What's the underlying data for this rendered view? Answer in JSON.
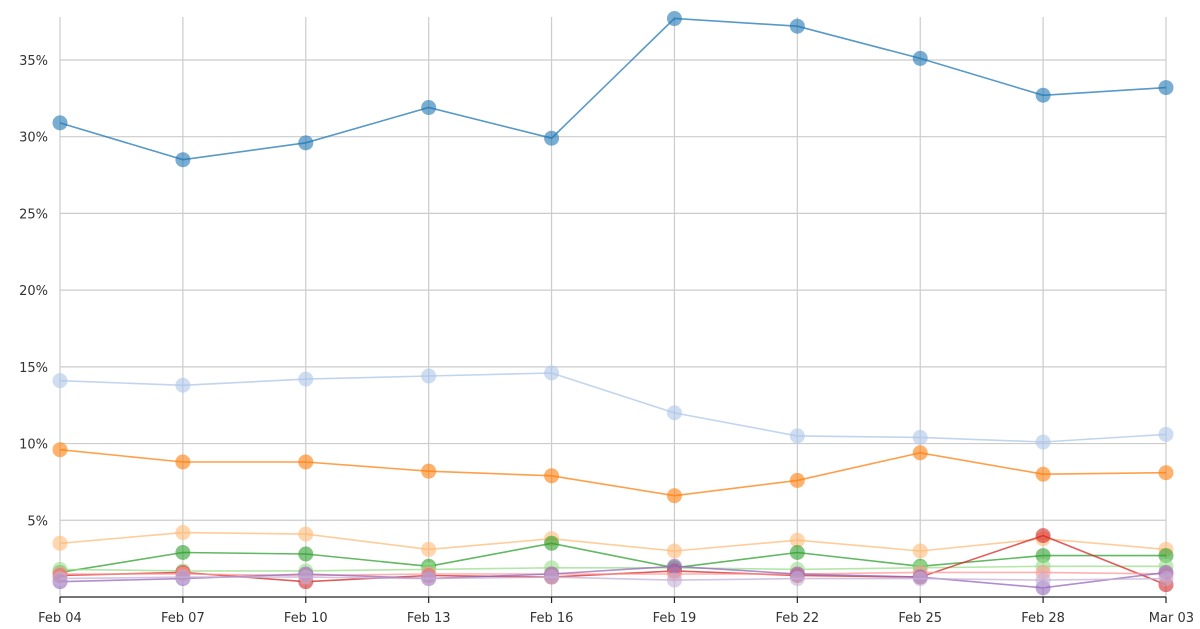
{
  "chart_data": {
    "type": "line",
    "title": "",
    "xlabel": "",
    "ylabel": "",
    "x": [
      "Feb 04",
      "Feb 07",
      "Feb 10",
      "Feb 13",
      "Feb 16",
      "Feb 19",
      "Feb 22",
      "Feb 25",
      "Feb 28",
      "Mar 03"
    ],
    "ylim": [
      0,
      37.8
    ],
    "yticks": [
      5,
      10,
      15,
      20,
      25,
      30,
      35
    ],
    "ytick_labels": [
      "5%",
      "10%",
      "15%",
      "20%",
      "25%",
      "30%",
      "35%"
    ],
    "grid": true,
    "legend": "none",
    "series": [
      {
        "color": "#1f77b4",
        "values": [
          30.9,
          28.5,
          29.6,
          31.9,
          29.9,
          37.7,
          37.2,
          35.1,
          32.7,
          33.2
        ]
      },
      {
        "color": "#aec7e8",
        "values": [
          14.1,
          13.8,
          14.2,
          14.4,
          14.6,
          12.0,
          10.5,
          10.4,
          10.1,
          10.6
        ]
      },
      {
        "color": "#ff7f0e",
        "values": [
          9.6,
          8.8,
          8.8,
          8.2,
          7.9,
          6.6,
          7.6,
          9.4,
          8.0,
          8.1
        ]
      },
      {
        "color": "#ffbb78",
        "values": [
          3.5,
          4.2,
          4.1,
          3.1,
          3.8,
          3.0,
          3.7,
          3.0,
          3.8,
          3.1
        ]
      },
      {
        "color": "#2ca02c",
        "values": [
          1.6,
          2.9,
          2.8,
          2.0,
          3.5,
          1.9,
          2.9,
          2.0,
          2.7,
          2.7
        ]
      },
      {
        "color": "#98df8a",
        "values": [
          1.8,
          1.7,
          1.7,
          1.8,
          1.9,
          1.9,
          1.8,
          1.9,
          2.0,
          2.0
        ]
      },
      {
        "color": "#d62728",
        "values": [
          1.4,
          1.6,
          1.0,
          1.4,
          1.3,
          1.7,
          1.4,
          1.3,
          4.0,
          0.8
        ]
      },
      {
        "color": "#ff9896",
        "values": [
          1.5,
          1.5,
          1.4,
          1.5,
          1.5,
          1.5,
          1.5,
          1.6,
          1.6,
          1.5
        ]
      },
      {
        "color": "#9467bd",
        "values": [
          1.0,
          1.2,
          1.5,
          1.2,
          1.5,
          2.0,
          1.5,
          1.3,
          0.6,
          1.6
        ]
      },
      {
        "color": "#c5b0d5",
        "values": [
          1.2,
          1.3,
          1.3,
          1.2,
          1.3,
          1.1,
          1.2,
          1.2,
          1.1,
          1.2
        ]
      }
    ]
  }
}
